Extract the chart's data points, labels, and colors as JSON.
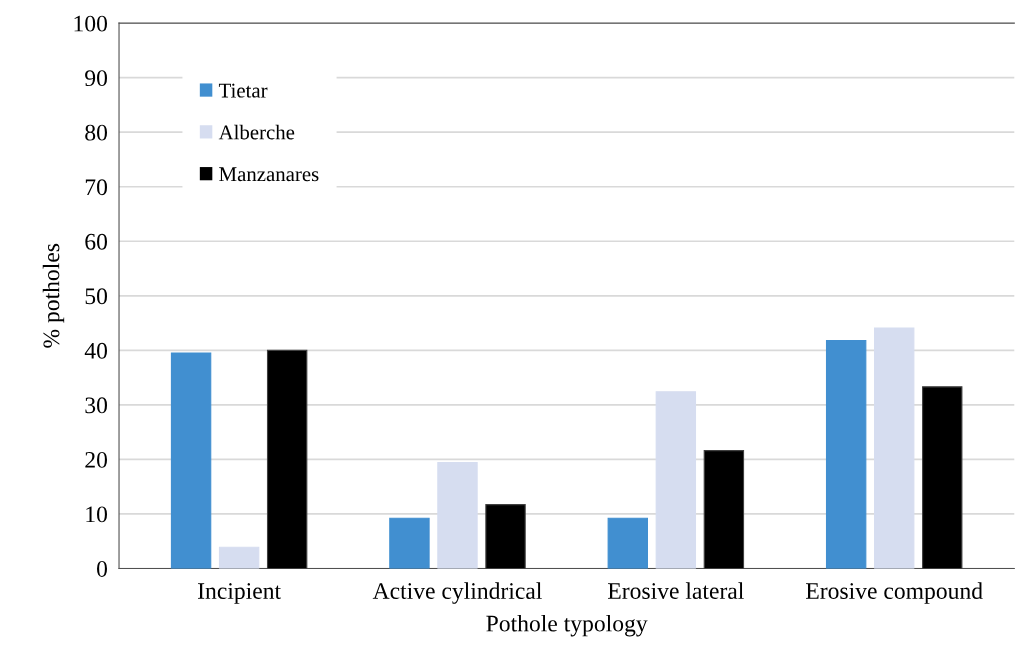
{
  "chart_data": {
    "type": "bar",
    "xlabel": "Pothole typology",
    "ylabel": "% potholes",
    "categories": [
      "Incipient",
      "Active cylindrical",
      "Erosive lateral",
      "Erosive compound"
    ],
    "series": [
      {
        "name": "Tietar",
        "color": "#418fd0",
        "values": [
          39.5,
          9.2,
          9.2,
          41.8
        ]
      },
      {
        "name": "Alberche",
        "color": "#d6ddf0",
        "values": [
          3.9,
          19.4,
          32.4,
          44.1
        ]
      },
      {
        "name": "Manzanares",
        "color": "#000000",
        "values": [
          40.0,
          11.7,
          21.6,
          33.3
        ]
      }
    ],
    "ylim": [
      0,
      100
    ],
    "yticks": [
      0,
      10,
      20,
      30,
      40,
      50,
      60,
      70,
      80,
      90,
      100
    ],
    "grid": "y",
    "legend": "top left"
  }
}
